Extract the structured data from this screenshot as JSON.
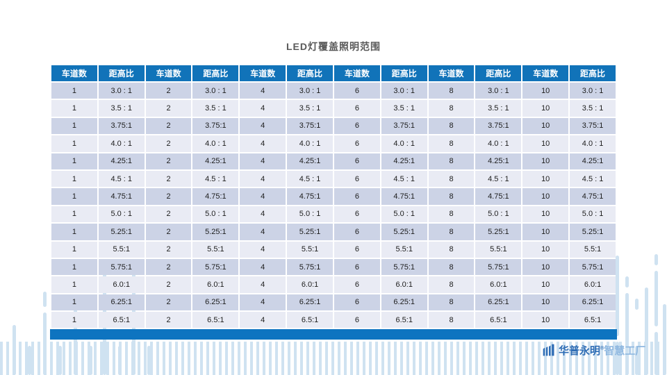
{
  "title": "LED灯覆盖照明范围",
  "table": {
    "header_labels": [
      "车道数",
      "距高比",
      "车道数",
      "距高比",
      "车道数",
      "距高比",
      "车道数",
      "距高比",
      "车道数",
      "距高比",
      "车道数",
      "距高比"
    ],
    "lanes": [
      1,
      2,
      4,
      6,
      8,
      10
    ],
    "ratios": [
      "3.0 : 1",
      "3.5 : 1",
      "3.75:1",
      "4.0 : 1",
      "4.25:1",
      "4.5 : 1",
      "4.75:1",
      "5.0 : 1",
      "5.25:1",
      "5.5:1",
      "5.75:1",
      "6.0:1",
      "6.25:1",
      "6.5:1"
    ]
  },
  "logo": {
    "brand": "华普永明",
    "reg_mark": "®",
    "suffix": "智慧工厂"
  },
  "colors": {
    "header_bg": "#1173b9",
    "footer_bar": "#0e74c0",
    "row_odd": "#ccd3e6",
    "row_even": "#e9ebf4",
    "stripe": "#cfe2f1",
    "logo_primary": "#2f6db5",
    "logo_secondary": "#8fb8e0",
    "title_color": "#595959"
  }
}
